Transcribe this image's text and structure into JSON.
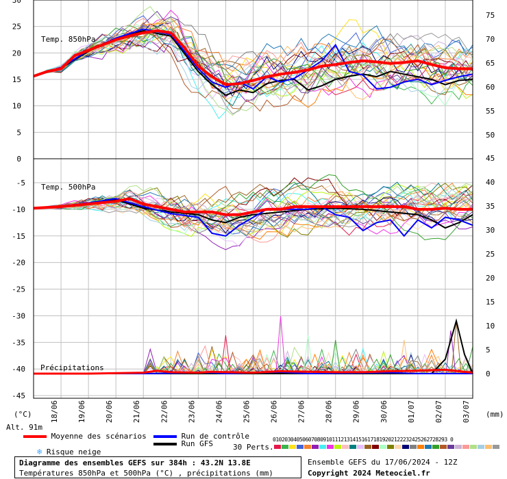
{
  "chart_data": {
    "type": "line",
    "panels": [
      {
        "title": "Temp. 850hPa",
        "ylim": [
          0,
          30
        ],
        "yticks_left": [
          "30",
          "25",
          "20",
          "15",
          "10",
          "5",
          "0"
        ],
        "yticks_right": [
          "75",
          "70",
          "65",
          "60",
          "55",
          "50"
        ],
        "right_tick_values": [
          75,
          70,
          65,
          60,
          55,
          50
        ]
      },
      {
        "title": "Temp. 500hPa",
        "ylim": [
          -50,
          -5
        ],
        "yticks_left": [
          "-5",
          "-10",
          "-15",
          "-20",
          "-25",
          "-30",
          "-35",
          "-40",
          "-45"
        ],
        "yticks_right": [
          "45",
          "40",
          "35",
          "30",
          "25",
          "20",
          "15",
          "10",
          "5",
          "0"
        ],
        "right_tick_values": [
          45,
          40,
          35,
          30,
          25,
          20,
          15,
          10,
          5,
          0
        ]
      }
    ],
    "precip_label": "Précipitations",
    "x_dates": [
      "18/06",
      "19/06",
      "20/06",
      "21/06",
      "22/06",
      "23/06",
      "24/06",
      "25/06",
      "26/06",
      "27/06",
      "28/06",
      "29/06",
      "30/06",
      "01/07",
      "02/07",
      "03/07"
    ],
    "x_range_days": [
      0,
      16
    ],
    "ensemble_mean_850": [
      [
        0,
        15.6
      ],
      [
        0.5,
        16.5
      ],
      [
        1,
        17
      ],
      [
        1.5,
        19.5
      ],
      [
        2,
        20.5
      ],
      [
        2.5,
        21.5
      ],
      [
        3,
        22.5
      ],
      [
        3.5,
        23.2
      ],
      [
        4,
        23.8
      ],
      [
        4.5,
        24.2
      ],
      [
        5,
        23.8
      ],
      [
        5.5,
        21
      ],
      [
        6,
        17.5
      ],
      [
        6.5,
        15.5
      ],
      [
        7,
        14
      ],
      [
        7.5,
        14.2
      ],
      [
        8,
        14.8
      ],
      [
        8.5,
        15.5
      ],
      [
        9,
        16
      ],
      [
        9.5,
        16.3
      ],
      [
        10,
        16.8
      ],
      [
        10.5,
        17.5
      ],
      [
        11,
        17.8
      ],
      [
        11.5,
        18.2
      ],
      [
        12,
        18.5
      ],
      [
        12.5,
        18.3
      ],
      [
        13,
        18
      ],
      [
        13.5,
        18.2
      ],
      [
        14,
        18.5
      ],
      [
        14.5,
        17.8
      ],
      [
        15,
        17.2
      ],
      [
        15.5,
        17
      ],
      [
        16,
        17
      ]
    ],
    "control_run_850": [
      [
        0,
        15.6
      ],
      [
        1,
        17.2
      ],
      [
        2,
        20.5
      ],
      [
        3,
        22.8
      ],
      [
        4,
        24.5
      ],
      [
        5,
        23.5
      ],
      [
        6,
        17
      ],
      [
        6.5,
        14.5
      ],
      [
        7,
        13.5
      ],
      [
        7.5,
        14.5
      ],
      [
        8,
        13.2
      ],
      [
        8.5,
        15.5
      ],
      [
        9,
        14.5
      ],
      [
        9.5,
        15.2
      ],
      [
        10,
        16.8
      ],
      [
        10.5,
        18.5
      ],
      [
        11,
        21.5
      ],
      [
        11.5,
        16.5
      ],
      [
        12,
        15.8
      ],
      [
        12.5,
        13.2
      ],
      [
        13,
        13.5
      ],
      [
        13.5,
        14.5
      ],
      [
        14,
        15
      ],
      [
        14.5,
        14
      ],
      [
        15,
        14.8
      ],
      [
        15.5,
        15.5
      ],
      [
        16,
        16
      ]
    ],
    "gfs_run_850": [
      [
        0,
        15.6
      ],
      [
        1,
        17.1
      ],
      [
        2,
        20.3
      ],
      [
        3,
        22.6
      ],
      [
        4,
        24.2
      ],
      [
        5,
        23.2
      ],
      [
        6,
        16.5
      ],
      [
        6.5,
        14
      ],
      [
        7,
        12
      ],
      [
        7.5,
        13
      ],
      [
        8,
        12.5
      ],
      [
        8.5,
        14.2
      ],
      [
        9,
        14.8
      ],
      [
        9.5,
        15
      ],
      [
        10,
        13
      ],
      [
        10.5,
        13.8
      ],
      [
        11,
        15
      ],
      [
        11.5,
        15.6
      ],
      [
        12,
        16
      ],
      [
        12.5,
        15.5
      ],
      [
        13,
        16.5
      ],
      [
        13.5,
        16
      ],
      [
        14,
        15.5
      ],
      [
        14.5,
        15
      ],
      [
        15,
        14
      ],
      [
        15.5,
        14.8
      ],
      [
        16,
        15
      ]
    ],
    "ensemble_mean_500": [
      [
        0,
        -9.8
      ],
      [
        1,
        -9.5
      ],
      [
        2,
        -9
      ],
      [
        3,
        -8.5
      ],
      [
        3.5,
        -8
      ],
      [
        4,
        -9
      ],
      [
        4.5,
        -9.5
      ],
      [
        5,
        -10
      ],
      [
        5.5,
        -10.5
      ],
      [
        6,
        -10.5
      ],
      [
        6.5,
        -10.5
      ],
      [
        7,
        -11
      ],
      [
        7.5,
        -11
      ],
      [
        8,
        -10.5
      ],
      [
        8.5,
        -10
      ],
      [
        9,
        -10
      ],
      [
        9.5,
        -9.5
      ],
      [
        10,
        -9.5
      ],
      [
        10.5,
        -9.5
      ],
      [
        11,
        -9.5
      ],
      [
        11.5,
        -9.5
      ],
      [
        12,
        -9.5
      ],
      [
        12.5,
        -9.5
      ],
      [
        13,
        -9.5
      ],
      [
        13.5,
        -9.5
      ],
      [
        14,
        -10
      ],
      [
        14.5,
        -10
      ],
      [
        15,
        -9.8
      ],
      [
        15.5,
        -10
      ],
      [
        16,
        -10
      ]
    ],
    "control_run_500": [
      [
        0,
        -9.8
      ],
      [
        1,
        -9.4
      ],
      [
        2,
        -8.8
      ],
      [
        3,
        -8
      ],
      [
        4,
        -9.5
      ],
      [
        5,
        -10.8
      ],
      [
        6,
        -11.5
      ],
      [
        6.5,
        -14.5
      ],
      [
        7,
        -15
      ],
      [
        7.5,
        -13
      ],
      [
        8,
        -11.5
      ],
      [
        8.5,
        -10
      ],
      [
        9,
        -10
      ],
      [
        10,
        -10
      ],
      [
        10.5,
        -9.5
      ],
      [
        11,
        -11
      ],
      [
        11.5,
        -11.5
      ],
      [
        12,
        -14
      ],
      [
        12.5,
        -12.5
      ],
      [
        13,
        -12
      ],
      [
        13.5,
        -15
      ],
      [
        14,
        -12
      ],
      [
        14.5,
        -13.5
      ],
      [
        15,
        -11.5
      ],
      [
        15.5,
        -12
      ],
      [
        16,
        -13
      ]
    ],
    "gfs_run_500": [
      [
        0,
        -9.8
      ],
      [
        1,
        -9.4
      ],
      [
        2,
        -8.9
      ],
      [
        3,
        -8.2
      ],
      [
        4,
        -9.8
      ],
      [
        5,
        -10.5
      ],
      [
        6,
        -11
      ],
      [
        6.5,
        -12
      ],
      [
        7,
        -12.5
      ],
      [
        7.5,
        -11.5
      ],
      [
        8,
        -11
      ],
      [
        9,
        -10.5
      ],
      [
        10,
        -10
      ],
      [
        11,
        -9.8
      ],
      [
        12,
        -10
      ],
      [
        13,
        -10.5
      ],
      [
        14,
        -11
      ],
      [
        14.5,
        -12
      ],
      [
        15,
        -13.5
      ],
      [
        15.5,
        -12.5
      ],
      [
        16,
        -11
      ]
    ],
    "precip_mean_mm": [
      [
        0,
        0
      ],
      [
        2,
        0
      ],
      [
        4,
        0.2
      ],
      [
        4.5,
        0.6
      ],
      [
        5,
        0.3
      ],
      [
        6,
        0.2
      ],
      [
        6.5,
        0.4
      ],
      [
        7,
        0.3
      ],
      [
        8,
        0.2
      ],
      [
        9,
        0.5
      ],
      [
        10,
        0.4
      ],
      [
        11,
        0.3
      ],
      [
        12,
        0.3
      ],
      [
        13,
        0.5
      ],
      [
        14,
        0.6
      ],
      [
        15,
        0.8
      ],
      [
        16,
        0.2
      ]
    ],
    "precip_control_mm": [
      [
        0,
        0
      ],
      [
        4,
        0
      ],
      [
        6.5,
        0.2
      ],
      [
        7,
        0
      ],
      [
        9,
        0.3
      ],
      [
        10,
        0
      ],
      [
        13,
        0.2
      ],
      [
        14,
        0
      ],
      [
        16,
        0
      ]
    ],
    "precip_gfs_mm": [
      [
        0,
        0
      ],
      [
        14.5,
        0
      ],
      [
        15,
        3
      ],
      [
        15.4,
        11
      ],
      [
        15.7,
        4
      ],
      [
        16,
        0
      ]
    ],
    "precip_peak_members_mm": [
      [
        7,
        8
      ],
      [
        9,
        12
      ],
      [
        10,
        8
      ],
      [
        11,
        7
      ],
      [
        13.5,
        7
      ],
      [
        15.2,
        9
      ],
      [
        15.4,
        11
      ]
    ]
  },
  "axis_units": {
    "left": "(°C)",
    "right": "(mm)"
  },
  "altitude": "Alt. 91m",
  "legend": {
    "mean": "Moyenne des scénarios",
    "control": "Run de contrôle",
    "gfs": "Run GFS",
    "snow": "Risque neige",
    "perts_label": "30 Perts.",
    "perts_numbers": "01020304050607080910111213141516171819202122232425262728293 0"
  },
  "colors": {
    "mean": "#ff0000",
    "control": "#0000ff",
    "gfs": "#000000",
    "snow": "#40a8ff",
    "grid": "#c0c0c0",
    "members": [
      "#e6194b",
      "#3cb44b",
      "#ffe119",
      "#4363d8",
      "#f58231",
      "#911eb4",
      "#46f0f0",
      "#f032e6",
      "#bcf60c",
      "#fabebe",
      "#008080",
      "#e6beff",
      "#9a6324",
      "#800000",
      "#aaffc3",
      "#808000",
      "#ffd8b1",
      "#000075",
      "#808080",
      "#ff7f00",
      "#1f78b4",
      "#33a02c",
      "#b15928",
      "#6a3d9a",
      "#cab2d6",
      "#fb9a99",
      "#b2df8a",
      "#a6cee3",
      "#fdbf6f",
      "#999999"
    ]
  },
  "footer": {
    "title": "Diagramme des ensembles GEFS sur 384h : 43.2N 13.8E",
    "subtitle": "Températures 850hPa et 500hPa (°C) , précipitations (mm)",
    "run": "Ensemble GEFS du 17/06/2024 - 12Z",
    "copyright": "Copyright 2024 Meteociel.fr"
  }
}
